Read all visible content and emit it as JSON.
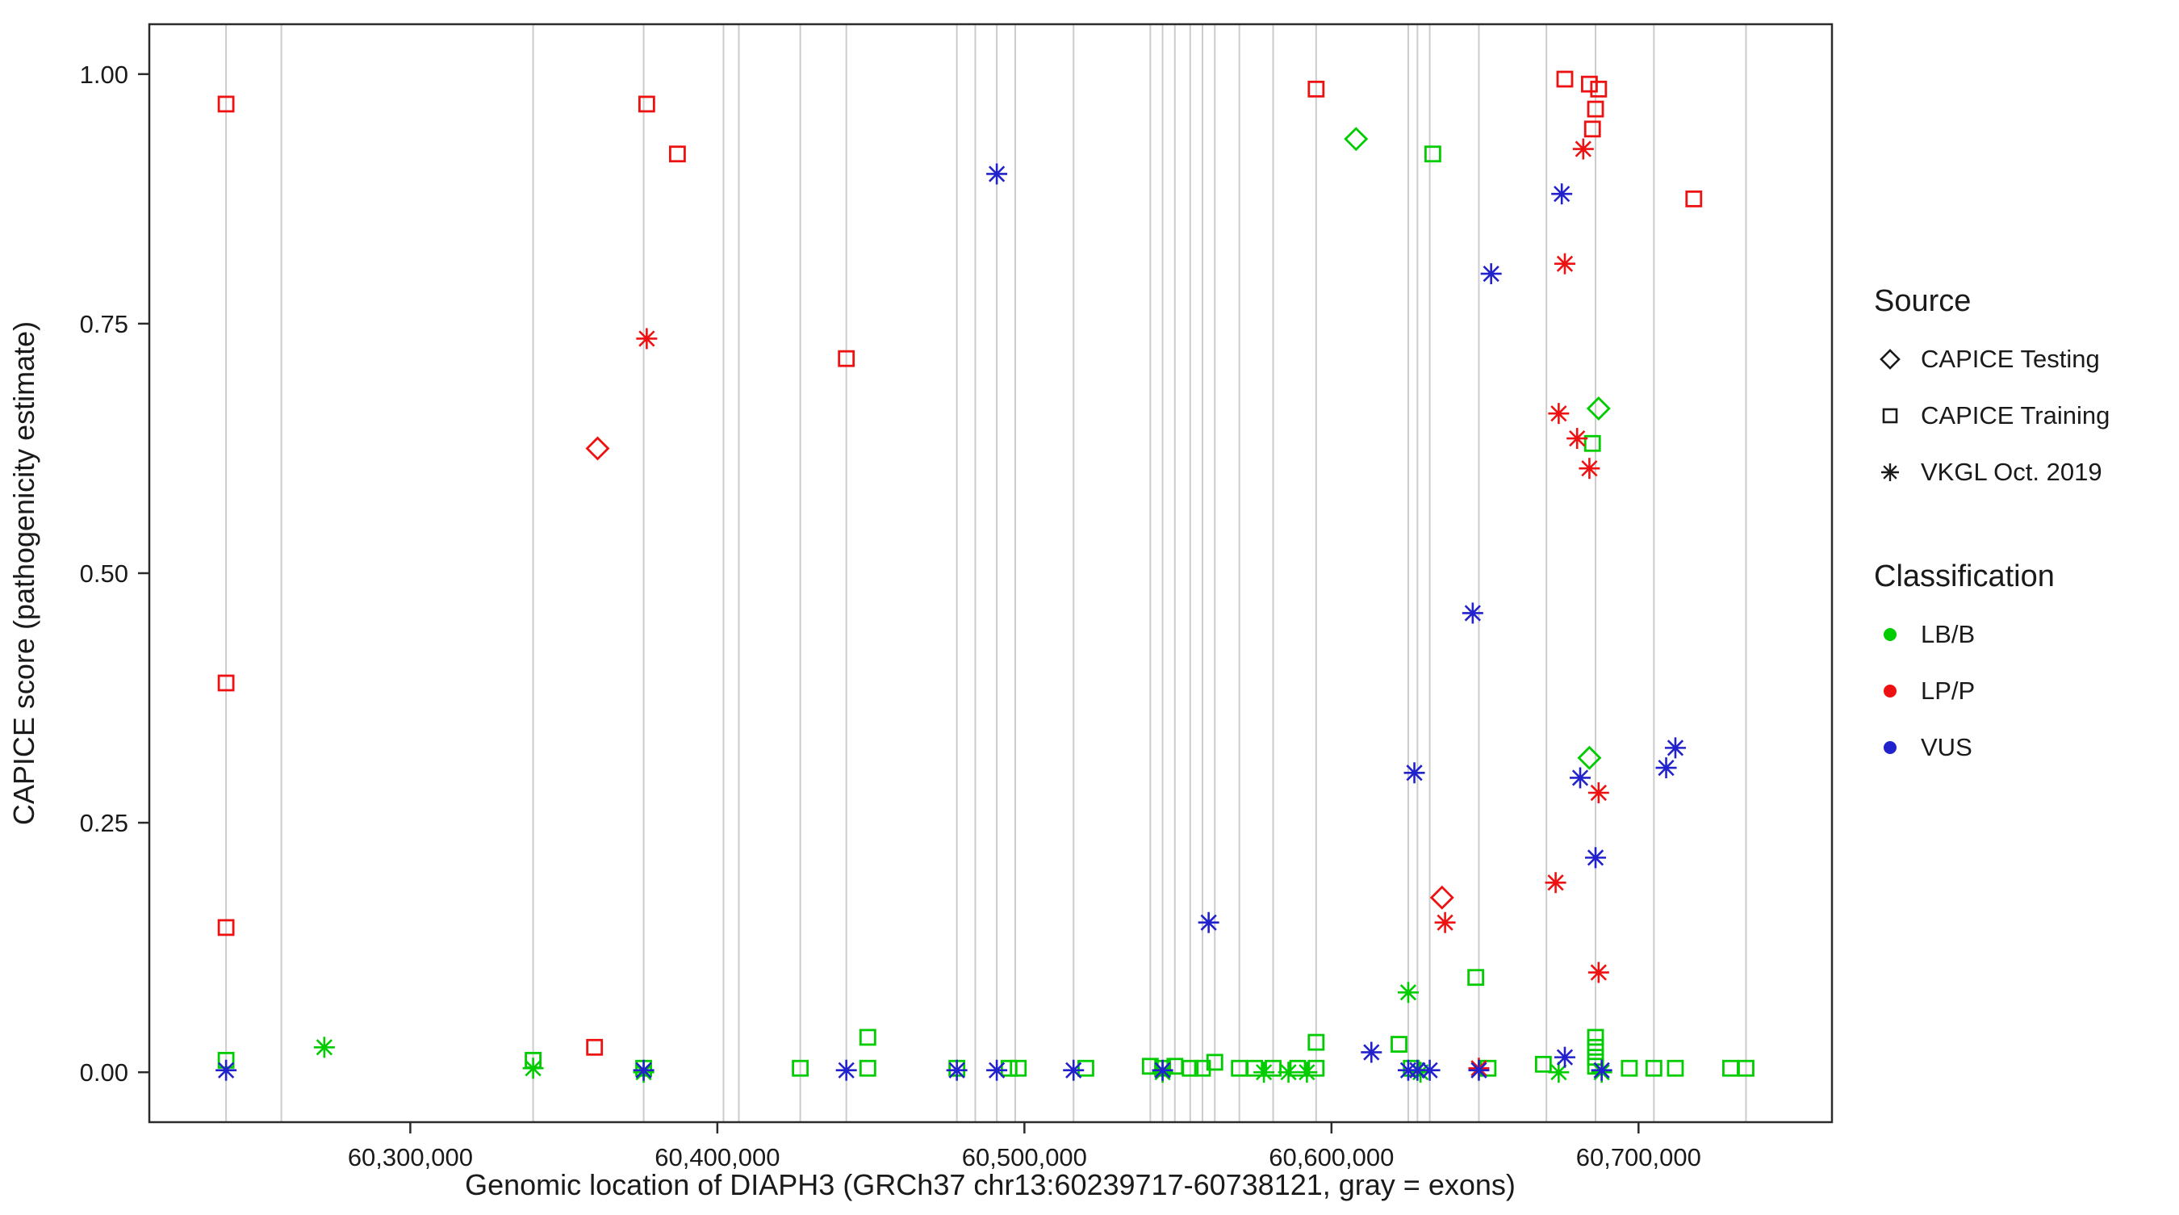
{
  "figure": {
    "background": "#ffffff",
    "panel_border_color": "#2b2b2b",
    "text_color": "#1a1a1a"
  },
  "chart_data": {
    "type": "scatter",
    "title": "",
    "xlabel": "Genomic location of DIAPH3 (GRCh37 chr13:60239717-60738121, gray = exons)",
    "ylabel": "CAPICE score (pathogenicity estimate)",
    "xlim": [
      60215000,
      60763000
    ],
    "ylim": [
      -0.05,
      1.05
    ],
    "grid": false,
    "x_ticks": {
      "values": [
        60300000,
        60400000,
        60500000,
        60600000,
        60700000
      ],
      "labels": [
        "60,300,000",
        "60,400,000",
        "60,500,000",
        "60,600,000",
        "60,700,000"
      ]
    },
    "y_ticks": {
      "values": [
        0,
        0.25,
        0.5,
        0.75,
        1
      ],
      "labels": [
        "0.00",
        "0.25",
        "0.50",
        "0.75",
        "1.00"
      ]
    },
    "exon_color": "#cccccc",
    "exon_positions": [
      60240000,
      60258000,
      60340000,
      60376000,
      60402000,
      60407000,
      60427000,
      60442000,
      60478000,
      60484000,
      60491000,
      60497000,
      60516000,
      60541000,
      60545000,
      60549000,
      60554000,
      60558000,
      60562000,
      60570000,
      60581000,
      60595000,
      60625000,
      60628000,
      60632000,
      60648000,
      60670000,
      60686000,
      60705000,
      60735000
    ],
    "colors": {
      "LB/B": "#00cc00",
      "LP/P": "#ee1111",
      "VUS": "#2222cc"
    },
    "shapes": {
      "CAPICE Testing": "diamond",
      "CAPICE Training": "square",
      "VKGL Oct. 2019": "asterisk"
    },
    "series": [
      {
        "source": "CAPICE Testing",
        "classification": "LP/P",
        "points": [
          [
            60361000,
            0.625
          ],
          [
            60636000,
            0.175
          ]
        ]
      },
      {
        "source": "CAPICE Testing",
        "classification": "LB/B",
        "points": [
          [
            60608000,
            0.935
          ],
          [
            60687000,
            0.665
          ],
          [
            60684000,
            0.315
          ]
        ]
      },
      {
        "source": "CAPICE Training",
        "classification": "LP/P",
        "points": [
          [
            60240000,
            0.97
          ],
          [
            60240000,
            0.39
          ],
          [
            60240000,
            0.145
          ],
          [
            60360000,
            0.025
          ],
          [
            60377000,
            0.97
          ],
          [
            60387000,
            0.92
          ],
          [
            60442000,
            0.715
          ],
          [
            60595000,
            0.985
          ],
          [
            60676000,
            0.995
          ],
          [
            60684000,
            0.99
          ],
          [
            60687000,
            0.985
          ],
          [
            60686000,
            0.965
          ],
          [
            60685000,
            0.945
          ],
          [
            60718000,
            0.875
          ]
        ]
      },
      {
        "source": "CAPICE Training",
        "classification": "LB/B",
        "points": [
          [
            60240000,
            0.012
          ],
          [
            60340000,
            0.012
          ],
          [
            60376000,
            0.004
          ],
          [
            60427000,
            0.004
          ],
          [
            60449000,
            0.035
          ],
          [
            60449000,
            0.004
          ],
          [
            60478000,
            0.004
          ],
          [
            60495000,
            0.004
          ],
          [
            60498000,
            0.004
          ],
          [
            60520000,
            0.004
          ],
          [
            60541000,
            0.006
          ],
          [
            60545000,
            0.004
          ],
          [
            60549000,
            0.006
          ],
          [
            60554000,
            0.004
          ],
          [
            60558000,
            0.004
          ],
          [
            60562000,
            0.01
          ],
          [
            60570000,
            0.004
          ],
          [
            60575000,
            0.004
          ],
          [
            60581000,
            0.004
          ],
          [
            60589000,
            0.004
          ],
          [
            60595000,
            0.03
          ],
          [
            60595000,
            0.004
          ],
          [
            60622000,
            0.028
          ],
          [
            60626000,
            0.004
          ],
          [
            60633000,
            0.92
          ],
          [
            60647000,
            0.095
          ],
          [
            60651000,
            0.004
          ],
          [
            60669000,
            0.008
          ],
          [
            60685000,
            0.63
          ],
          [
            60686000,
            0.035
          ],
          [
            60686000,
            0.025
          ],
          [
            60686000,
            0.015
          ],
          [
            60686000,
            0.006
          ],
          [
            60697000,
            0.004
          ],
          [
            60705000,
            0.004
          ],
          [
            60712000,
            0.004
          ],
          [
            60730000,
            0.004
          ],
          [
            60735000,
            0.004
          ]
        ]
      },
      {
        "source": "VKGL Oct. 2019",
        "classification": "LP/P",
        "points": [
          [
            60377000,
            0.735
          ],
          [
            60682000,
            0.925
          ],
          [
            60676000,
            0.81
          ],
          [
            60674000,
            0.66
          ],
          [
            60680000,
            0.635
          ],
          [
            60684000,
            0.605
          ],
          [
            60687000,
            0.28
          ],
          [
            60673000,
            0.19
          ],
          [
            60637000,
            0.15
          ],
          [
            60687000,
            0.1
          ],
          [
            60648000,
            0.004
          ]
        ]
      },
      {
        "source": "VKGL Oct. 2019",
        "classification": "LB/B",
        "points": [
          [
            60272000,
            0.025
          ],
          [
            60340000,
            0.004
          ],
          [
            60625000,
            0.08
          ],
          [
            60376000,
            0.0
          ],
          [
            60545000,
            0.0
          ],
          [
            60578000,
            0.0
          ],
          [
            60586000,
            0.0
          ],
          [
            60592000,
            0.0
          ],
          [
            60629000,
            0.0
          ],
          [
            60674000,
            0.0
          ],
          [
            60688000,
            0.0
          ]
        ]
      },
      {
        "source": "VKGL Oct. 2019",
        "classification": "VUS",
        "points": [
          [
            60491000,
            0.9
          ],
          [
            60675000,
            0.88
          ],
          [
            60652000,
            0.8
          ],
          [
            60646000,
            0.46
          ],
          [
            60627000,
            0.3
          ],
          [
            60712000,
            0.325
          ],
          [
            60709000,
            0.305
          ],
          [
            60681000,
            0.295
          ],
          [
            60686000,
            0.215
          ],
          [
            60560000,
            0.15
          ],
          [
            60613000,
            0.02
          ],
          [
            60676000,
            0.015
          ],
          [
            60240000,
            0.002
          ],
          [
            60376000,
            0.002
          ],
          [
            60442000,
            0.002
          ],
          [
            60478000,
            0.002
          ],
          [
            60491000,
            0.002
          ],
          [
            60516000,
            0.002
          ],
          [
            60545000,
            0.002
          ],
          [
            60625000,
            0.002
          ],
          [
            60628000,
            0.002
          ],
          [
            60632000,
            0.002
          ],
          [
            60648000,
            0.002
          ],
          [
            60688000,
            0.002
          ]
        ]
      }
    ]
  },
  "legend": {
    "source_title": "Source",
    "source_items": [
      {
        "label": "CAPICE Testing",
        "shape": "diamond"
      },
      {
        "label": "CAPICE Training",
        "shape": "square"
      },
      {
        "label": "VKGL Oct. 2019",
        "shape": "asterisk"
      }
    ],
    "classification_title": "Classification",
    "classification_items": [
      {
        "label": "LB/B",
        "color": "#00cc00"
      },
      {
        "label": "LP/P",
        "color": "#ee1111"
      },
      {
        "label": "VUS",
        "color": "#2222cc"
      }
    ]
  }
}
